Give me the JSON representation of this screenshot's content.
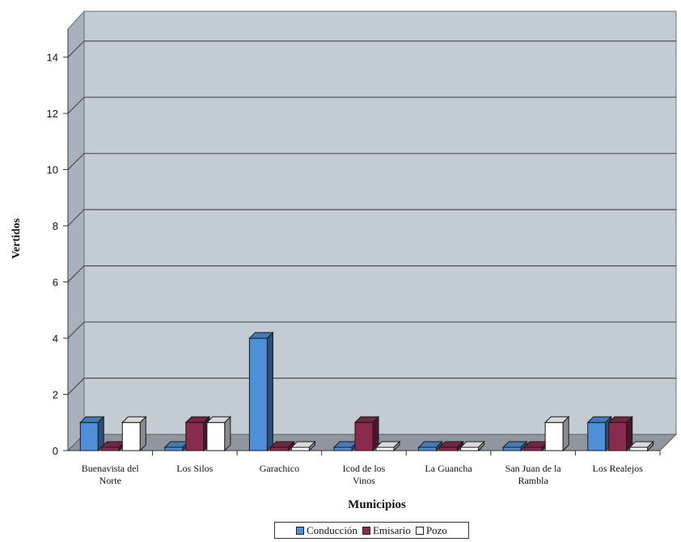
{
  "chart_data": {
    "type": "bar",
    "title": "",
    "xlabel": "Municipios",
    "ylabel": "Vertidos",
    "ylim": [
      0,
      15
    ],
    "yticks": [
      0,
      2,
      4,
      6,
      8,
      10,
      12,
      14
    ],
    "grid": true,
    "legend_position": "bottom",
    "categories": [
      [
        "Buenavista del",
        "Norte"
      ],
      [
        "Los Silos"
      ],
      [
        "Garachico"
      ],
      [
        "Icod de los",
        "Vinos"
      ],
      [
        "La Guancha"
      ],
      [
        "San Juan de la",
        "Rambla"
      ],
      [
        "Los Realejos"
      ]
    ],
    "series": [
      {
        "name": "Conduccion",
        "color": "#4f8fd8",
        "values": [
          1,
          0,
          4,
          0,
          0,
          0,
          1
        ]
      },
      {
        "name": "Emisario",
        "color": "#8a2a4e",
        "values": [
          0,
          1,
          0,
          1,
          0,
          0,
          1
        ]
      },
      {
        "name": "Pozo",
        "color": "#ffffff",
        "values": [
          1,
          1,
          0,
          0,
          0,
          1,
          0
        ]
      }
    ]
  },
  "legend": {
    "items": [
      {
        "label": "Conducción",
        "color": "#4f8fd8"
      },
      {
        "label": "Emisario",
        "color": "#8a2a4e"
      },
      {
        "label": "Pozo",
        "color": "#ffffff"
      }
    ]
  }
}
